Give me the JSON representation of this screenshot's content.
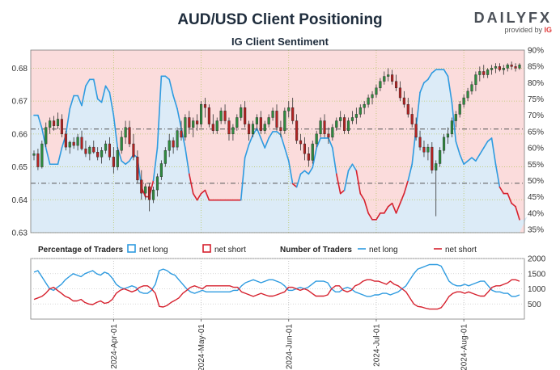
{
  "header": {
    "title": "AUD/USD Client Positioning",
    "subtitle": "IG Client Sentiment",
    "brand": "DAILYFX",
    "brand_sub_prefix": "provided by",
    "brand_sub_ig": "IG"
  },
  "colors": {
    "net_long": "#2e9be0",
    "net_short": "#d6212e",
    "long_fill": "#dcebf7",
    "short_fill": "#fbdcdc",
    "candle_up": "#2e8b3e",
    "candle_down": "#b42323",
    "ref_line": "#555555"
  },
  "legend": {
    "pct_title": "Percentage of Traders",
    "pct_long": "net long",
    "pct_short": "net short",
    "num_title": "Number of Traders",
    "num_long": "net long",
    "num_short": "net short"
  },
  "chart_data": [
    {
      "type": "candlestick",
      "title": "AUD/USD Client Positioning",
      "left_axis": {
        "ylim": [
          0.63,
          0.6855
        ],
        "ticks": [
          0.63,
          0.64,
          0.65,
          0.66,
          0.67,
          0.68
        ]
      },
      "right_axis": {
        "ylim": [
          34,
          90
        ],
        "unit": "%",
        "ticks": [
          35,
          40,
          45,
          50,
          55,
          60,
          65,
          70,
          75,
          80,
          85,
          90
        ]
      },
      "reference_lines": [
        0.645,
        0.6615
      ],
      "x_ticks": [
        "2024-Apr-01",
        "2024-May-01",
        "2024-Jun-01",
        "2024-Jul-01",
        "2024-Aug-01"
      ],
      "x_tick_index": [
        20,
        42,
        64,
        86,
        108
      ],
      "pct_long_series": [
        70,
        70,
        66,
        60,
        55,
        55,
        55,
        60,
        64,
        72,
        76,
        76,
        73,
        79,
        81,
        81,
        75,
        74,
        79,
        77,
        70,
        60,
        56,
        55,
        56,
        58,
        57,
        48,
        45,
        45,
        50,
        60,
        82,
        82,
        81,
        76,
        72,
        66,
        60,
        52,
        46,
        44,
        46,
        47,
        44,
        44,
        44,
        44,
        44,
        44,
        44,
        44,
        44,
        57,
        61,
        64,
        66,
        63,
        60,
        63,
        65,
        65,
        64,
        60,
        56,
        49,
        48,
        52,
        53,
        52,
        54,
        60,
        63,
        63,
        63,
        60,
        52,
        46,
        47,
        53,
        55,
        53,
        46,
        44,
        40,
        38,
        38,
        40,
        40,
        42,
        43,
        40,
        43,
        46,
        50,
        55,
        66,
        77,
        80,
        81,
        83,
        84,
        84,
        84,
        82,
        74,
        62,
        58,
        55,
        56,
        57,
        56,
        58,
        60,
        62,
        63,
        55,
        48,
        46,
        46,
        43,
        42,
        38,
        38,
        39
      ],
      "candles": [
        [
          0.6535,
          0.655,
          0.652,
          0.654
        ],
        [
          0.654,
          0.6555,
          0.649,
          0.65
        ],
        [
          0.65,
          0.658,
          0.6495,
          0.657
        ],
        [
          0.657,
          0.6635,
          0.656,
          0.662
        ],
        [
          0.662,
          0.665,
          0.66,
          0.664
        ],
        [
          0.664,
          0.6655,
          0.661,
          0.6625
        ],
        [
          0.6625,
          0.6665,
          0.6615,
          0.6645
        ],
        [
          0.6645,
          0.666,
          0.659,
          0.66
        ],
        [
          0.66,
          0.661,
          0.655,
          0.656
        ],
        [
          0.656,
          0.658,
          0.654,
          0.6575
        ],
        [
          0.6575,
          0.659,
          0.6555,
          0.6565
        ],
        [
          0.6565,
          0.66,
          0.655,
          0.659
        ],
        [
          0.659,
          0.661,
          0.655,
          0.6555
        ],
        [
          0.6555,
          0.658,
          0.653,
          0.654
        ],
        [
          0.654,
          0.6565,
          0.652,
          0.656
        ],
        [
          0.656,
          0.658,
          0.654,
          0.6545
        ],
        [
          0.6545,
          0.656,
          0.652,
          0.653
        ],
        [
          0.653,
          0.656,
          0.651,
          0.655
        ],
        [
          0.655,
          0.658,
          0.654,
          0.657
        ],
        [
          0.657,
          0.659,
          0.652,
          0.653
        ],
        [
          0.653,
          0.656,
          0.648,
          0.65
        ],
        [
          0.65,
          0.656,
          0.649,
          0.655
        ],
        [
          0.655,
          0.661,
          0.654,
          0.659
        ],
        [
          0.659,
          0.664,
          0.657,
          0.662
        ],
        [
          0.662,
          0.664,
          0.656,
          0.657
        ],
        [
          0.657,
          0.66,
          0.652,
          0.653
        ],
        [
          0.653,
          0.655,
          0.645,
          0.646
        ],
        [
          0.646,
          0.649,
          0.64,
          0.642
        ],
        [
          0.642,
          0.645,
          0.64,
          0.644
        ],
        [
          0.644,
          0.645,
          0.6365,
          0.64
        ],
        [
          0.64,
          0.644,
          0.639,
          0.643
        ],
        [
          0.643,
          0.648,
          0.641,
          0.647
        ],
        [
          0.647,
          0.652,
          0.646,
          0.651
        ],
        [
          0.651,
          0.656,
          0.65,
          0.655
        ],
        [
          0.655,
          0.66,
          0.653,
          0.658
        ],
        [
          0.658,
          0.659,
          0.654,
          0.656
        ],
        [
          0.656,
          0.662,
          0.655,
          0.661
        ],
        [
          0.661,
          0.664,
          0.658,
          0.659
        ],
        [
          0.659,
          0.666,
          0.658,
          0.665
        ],
        [
          0.665,
          0.667,
          0.66,
          0.662
        ],
        [
          0.662,
          0.665,
          0.659,
          0.664
        ],
        [
          0.664,
          0.666,
          0.661,
          0.663
        ],
        [
          0.663,
          0.67,
          0.662,
          0.669
        ],
        [
          0.669,
          0.671,
          0.665,
          0.668
        ],
        [
          0.668,
          0.669,
          0.662,
          0.663
        ],
        [
          0.663,
          0.666,
          0.66,
          0.661
        ],
        [
          0.661,
          0.665,
          0.66,
          0.664
        ],
        [
          0.664,
          0.668,
          0.663,
          0.667
        ],
        [
          0.667,
          0.669,
          0.663,
          0.664
        ],
        [
          0.664,
          0.665,
          0.658,
          0.66
        ],
        [
          0.66,
          0.663,
          0.658,
          0.662
        ],
        [
          0.662,
          0.666,
          0.661,
          0.665
        ],
        [
          0.665,
          0.669,
          0.664,
          0.668
        ],
        [
          0.668,
          0.67,
          0.662,
          0.663
        ],
        [
          0.663,
          0.664,
          0.658,
          0.66
        ],
        [
          0.66,
          0.664,
          0.659,
          0.663
        ],
        [
          0.663,
          0.666,
          0.661,
          0.665
        ],
        [
          0.665,
          0.667,
          0.66,
          0.661
        ],
        [
          0.661,
          0.664,
          0.66,
          0.663
        ],
        [
          0.663,
          0.666,
          0.662,
          0.665
        ],
        [
          0.665,
          0.668,
          0.664,
          0.667
        ],
        [
          0.667,
          0.669,
          0.661,
          0.662
        ],
        [
          0.662,
          0.664,
          0.659,
          0.661
        ],
        [
          0.661,
          0.668,
          0.66,
          0.667
        ],
        [
          0.667,
          0.67,
          0.665,
          0.668
        ],
        [
          0.668,
          0.671,
          0.663,
          0.664
        ],
        [
          0.664,
          0.666,
          0.657,
          0.658
        ],
        [
          0.658,
          0.66,
          0.655,
          0.657
        ],
        [
          0.657,
          0.659,
          0.652,
          0.654
        ],
        [
          0.654,
          0.656,
          0.65,
          0.652
        ],
        [
          0.652,
          0.658,
          0.651,
          0.657
        ],
        [
          0.657,
          0.661,
          0.656,
          0.66
        ],
        [
          0.66,
          0.665,
          0.659,
          0.664
        ],
        [
          0.664,
          0.666,
          0.659,
          0.66
        ],
        [
          0.66,
          0.662,
          0.657,
          0.659
        ],
        [
          0.659,
          0.663,
          0.658,
          0.662
        ],
        [
          0.662,
          0.665,
          0.661,
          0.664
        ],
        [
          0.664,
          0.667,
          0.662,
          0.665
        ],
        [
          0.665,
          0.666,
          0.66,
          0.661
        ],
        [
          0.661,
          0.665,
          0.66,
          0.664
        ],
        [
          0.664,
          0.667,
          0.663,
          0.665
        ],
        [
          0.665,
          0.668,
          0.663,
          0.666
        ],
        [
          0.666,
          0.669,
          0.665,
          0.668
        ],
        [
          0.668,
          0.67,
          0.666,
          0.669
        ],
        [
          0.669,
          0.672,
          0.668,
          0.671
        ],
        [
          0.671,
          0.673,
          0.669,
          0.672
        ],
        [
          0.672,
          0.675,
          0.671,
          0.674
        ],
        [
          0.674,
          0.677,
          0.673,
          0.676
        ],
        [
          0.676,
          0.679,
          0.675,
          0.6775
        ],
        [
          0.6775,
          0.68,
          0.676,
          0.678
        ],
        [
          0.678,
          0.6795,
          0.675,
          0.676
        ],
        [
          0.676,
          0.678,
          0.673,
          0.674
        ],
        [
          0.674,
          0.676,
          0.67,
          0.671
        ],
        [
          0.671,
          0.673,
          0.668,
          0.669
        ],
        [
          0.669,
          0.671,
          0.665,
          0.666
        ],
        [
          0.666,
          0.668,
          0.662,
          0.663
        ],
        [
          0.663,
          0.665,
          0.658,
          0.659
        ],
        [
          0.659,
          0.661,
          0.655,
          0.656
        ],
        [
          0.656,
          0.658,
          0.653,
          0.6545
        ],
        [
          0.6545,
          0.657,
          0.652,
          0.656
        ],
        [
          0.656,
          0.6575,
          0.648,
          0.649
        ],
        [
          0.649,
          0.652,
          0.635,
          0.651
        ],
        [
          0.651,
          0.656,
          0.65,
          0.655
        ],
        [
          0.655,
          0.66,
          0.654,
          0.659
        ],
        [
          0.659,
          0.662,
          0.657,
          0.66
        ],
        [
          0.66,
          0.665,
          0.659,
          0.664
        ],
        [
          0.664,
          0.667,
          0.662,
          0.666
        ],
        [
          0.666,
          0.67,
          0.665,
          0.669
        ],
        [
          0.669,
          0.672,
          0.668,
          0.671
        ],
        [
          0.671,
          0.674,
          0.67,
          0.673
        ],
        [
          0.673,
          0.676,
          0.672,
          0.675
        ],
        [
          0.675,
          0.679,
          0.673,
          0.678
        ],
        [
          0.678,
          0.6805,
          0.676,
          0.679
        ],
        [
          0.679,
          0.681,
          0.677,
          0.678
        ],
        [
          0.678,
          0.68,
          0.677,
          0.6795
        ],
        [
          0.6795,
          0.681,
          0.678,
          0.68
        ],
        [
          0.68,
          0.6815,
          0.6785,
          0.6805
        ],
        [
          0.6805,
          0.6815,
          0.679,
          0.6795
        ],
        [
          0.6795,
          0.681,
          0.678,
          0.68
        ],
        [
          0.68,
          0.6815,
          0.679,
          0.681
        ],
        [
          0.681,
          0.682,
          0.6795,
          0.6805
        ],
        [
          0.6805,
          0.6815,
          0.679,
          0.68
        ],
        [
          0.68,
          0.6815,
          0.6795,
          0.681
        ]
      ]
    },
    {
      "type": "line",
      "title": "Number of Traders",
      "ylim": [
        0,
        2000
      ],
      "right_ticks": [
        500,
        1000,
        1500,
        2000
      ],
      "series": [
        {
          "name": "net long",
          "values": [
            1550,
            1600,
            1400,
            1200,
            1000,
            950,
            1050,
            1150,
            1300,
            1400,
            1500,
            1450,
            1400,
            1500,
            1550,
            1600,
            1500,
            1450,
            1550,
            1500,
            1350,
            1150,
            1050,
            1000,
            1050,
            1100,
            1050,
            900,
            850,
            850,
            950,
            1150,
            1600,
            1650,
            1600,
            1500,
            1450,
            1300,
            1150,
            1000,
            900,
            850,
            900,
            950,
            900,
            900,
            900,
            900,
            900,
            900,
            900,
            950,
            950,
            1100,
            1200,
            1250,
            1300,
            1250,
            1200,
            1250,
            1300,
            1300,
            1250,
            1200,
            1100,
            950,
            950,
            1000,
            1050,
            1000,
            1050,
            1150,
            1250,
            1250,
            1250,
            1200,
            1000,
            900,
            900,
            1000,
            1050,
            1000,
            900,
            850,
            800,
            750,
            750,
            800,
            800,
            850,
            850,
            800,
            850,
            900,
            1000,
            1100,
            1300,
            1500,
            1650,
            1700,
            1750,
            1800,
            1800,
            1800,
            1750,
            1500,
            1250,
            1150,
            1100,
            1100,
            1150,
            1100,
            1150,
            1200,
            1250,
            1250,
            1100,
            950,
            900,
            900,
            850,
            850,
            750,
            750,
            800
          ]
        },
        {
          "name": "net short",
          "values": [
            650,
            700,
            750,
            850,
            1000,
            1050,
            950,
            850,
            750,
            700,
            600,
            600,
            650,
            550,
            500,
            480,
            550,
            600,
            520,
            550,
            650,
            850,
            950,
            1000,
            950,
            900,
            950,
            1050,
            1100,
            1100,
            1000,
            850,
            420,
            400,
            450,
            550,
            620,
            700,
            850,
            950,
            1050,
            1100,
            1050,
            1000,
            1100,
            1100,
            1100,
            1100,
            1100,
            1100,
            1100,
            1050,
            1050,
            900,
            850,
            800,
            750,
            800,
            850,
            800,
            760,
            760,
            800,
            850,
            900,
            1050,
            1050,
            1000,
            950,
            1000,
            950,
            850,
            760,
            760,
            760,
            800,
            1000,
            1100,
            1100,
            950,
            900,
            950,
            1100,
            1150,
            1250,
            1300,
            1300,
            1250,
            1250,
            1200,
            1150,
            1250,
            1150,
            1100,
            1000,
            900,
            700,
            500,
            420,
            400,
            360,
            330,
            330,
            330,
            380,
            550,
            750,
            850,
            900,
            900,
            850,
            900,
            850,
            800,
            760,
            760,
            900,
            1050,
            1100,
            1100,
            1150,
            1200,
            1300,
            1300,
            1250
          ]
        }
      ]
    }
  ]
}
